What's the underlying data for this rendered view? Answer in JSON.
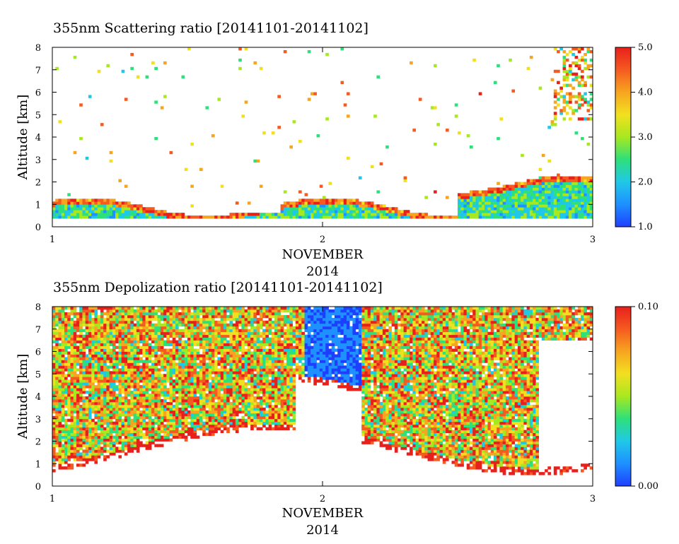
{
  "chart_data": [
    {
      "type": "heatmap",
      "title": "355nm Scattering ratio [20141101-20141102]",
      "xlabel": "NOVEMBER",
      "xlabel2": "2014",
      "ylabel": "Altitude [km]",
      "xlim": [
        1,
        3
      ],
      "ylim": [
        0,
        8
      ],
      "x_ticks": [
        "1",
        "2",
        "3"
      ],
      "y_ticks": [
        "0",
        "1",
        "2",
        "3",
        "4",
        "5",
        "6",
        "7",
        "8"
      ],
      "colorbar": {
        "range": [
          1.0,
          5.0
        ],
        "ticks": [
          "1.0",
          "2.0",
          "3.0",
          "4.0",
          "5.0"
        ],
        "colors": [
          "#1f3fff",
          "#1e90ff",
          "#20c8e8",
          "#2ee07a",
          "#a8e820",
          "#f2e020",
          "#f7a520",
          "#f55a20",
          "#e8201c"
        ]
      }
    },
    {
      "type": "heatmap",
      "title": "355nm Depolization ratio [20141101-20141102]",
      "xlabel": "NOVEMBER",
      "xlabel2": "2014",
      "ylabel": "Altitude [km]",
      "xlim": [
        1,
        3
      ],
      "ylim": [
        0,
        8
      ],
      "x_ticks": [
        "1",
        "2",
        "3"
      ],
      "y_ticks": [
        "0",
        "1",
        "2",
        "3",
        "4",
        "5",
        "6",
        "7",
        "8"
      ],
      "colorbar": {
        "range": [
          0.0,
          0.1
        ],
        "ticks": [
          "0.00",
          "0.10"
        ],
        "colors": [
          "#1f3fff",
          "#1e90ff",
          "#20c8e8",
          "#2ee07a",
          "#a8e820",
          "#f2e020",
          "#f7a520",
          "#f55a20",
          "#e8201c"
        ]
      }
    }
  ]
}
